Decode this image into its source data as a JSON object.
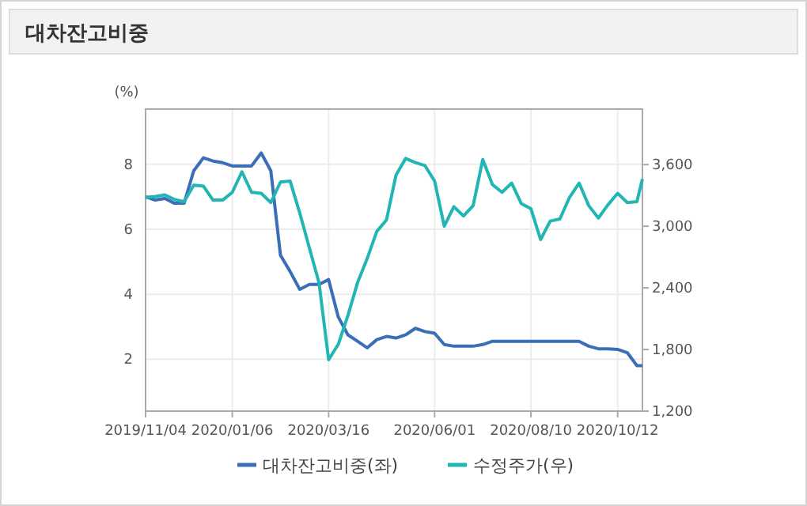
{
  "chart_data": {
    "type": "line",
    "title": "대차잔고비중",
    "ylabel": "(%)",
    "x": [
      "2019-11-04",
      "2019-11-11",
      "2019-11-18",
      "2019-11-25",
      "2019-12-02",
      "2019-12-09",
      "2019-12-16",
      "2019-12-23",
      "2019-12-30",
      "2020-01-06",
      "2020-01-13",
      "2020-01-20",
      "2020-01-27",
      "2020-02-03",
      "2020-02-10",
      "2020-02-17",
      "2020-02-24",
      "2020-03-02",
      "2020-03-09",
      "2020-03-16",
      "2020-03-23",
      "2020-03-30",
      "2020-04-06",
      "2020-04-13",
      "2020-04-20",
      "2020-04-27",
      "2020-05-04",
      "2020-05-11",
      "2020-05-18",
      "2020-05-25",
      "2020-06-01",
      "2020-06-08",
      "2020-06-15",
      "2020-06-22",
      "2020-06-29",
      "2020-07-06",
      "2020-07-13",
      "2020-07-20",
      "2020-07-27",
      "2020-08-03",
      "2020-08-10",
      "2020-08-17",
      "2020-08-24",
      "2020-08-31",
      "2020-09-07",
      "2020-09-14",
      "2020-09-21",
      "2020-09-28",
      "2020-10-05",
      "2020-10-12",
      "2020-10-19",
      "2020-10-26",
      "2020-10-30"
    ],
    "series": [
      {
        "name": "대차잔고비중(좌)",
        "color": "#3a6fb8",
        "values": [
          7.0,
          6.9,
          6.95,
          6.8,
          6.8,
          7.8,
          8.2,
          8.1,
          8.05,
          7.95,
          7.95,
          7.95,
          8.35,
          7.8,
          5.2,
          4.7,
          4.15,
          4.3,
          4.3,
          4.45,
          3.3,
          2.75,
          2.55,
          2.35,
          2.6,
          2.7,
          2.65,
          2.75,
          2.95,
          2.85,
          2.8,
          2.45,
          2.4,
          2.4,
          2.4,
          2.45,
          2.55,
          2.55,
          2.55,
          2.55,
          2.55,
          2.55,
          2.55,
          2.55,
          2.55,
          2.55,
          2.4,
          2.32,
          2.32,
          2.3,
          2.2,
          1.8,
          1.8
        ]
      },
      {
        "name": "수정주가(우)",
        "color": "#22b5b5",
        "axis": "y2",
        "values": [
          3280,
          3290,
          3305,
          3260,
          3240,
          3400,
          3390,
          3254,
          3254,
          3330,
          3530,
          3330,
          3320,
          3230,
          3430,
          3440,
          3130,
          2790,
          2450,
          1700,
          1850,
          2130,
          2450,
          2685,
          2950,
          3060,
          3500,
          3660,
          3620,
          3590,
          3440,
          3000,
          3190,
          3100,
          3200,
          3650,
          3405,
          3330,
          3420,
          3220,
          3170,
          2870,
          3050,
          3070,
          3280,
          3420,
          3200,
          3080,
          3210,
          3320,
          3230,
          3240,
          3460
        ]
      }
    ],
    "xlim": [
      "2019-11-04",
      "2020-10-30"
    ],
    "xticks": [
      {
        "value": "2019-11-04",
        "label": "2019/11/04"
      },
      {
        "value": "2020-01-06",
        "label": "2020/01/06"
      },
      {
        "value": "2020-03-16",
        "label": "2020/03/16"
      },
      {
        "value": "2020-06-01",
        "label": "2020/06/01"
      },
      {
        "value": "2020-08-10",
        "label": "2020/08/10"
      },
      {
        "value": "2020-10-12",
        "label": "2020/10/12"
      }
    ],
    "ylim": [
      0.4,
      9.7
    ],
    "yticks": [
      2,
      4,
      6,
      8
    ],
    "y2lim": [
      1200,
      4140
    ],
    "y2ticks": [
      {
        "value": 1200,
        "label": "1,200"
      },
      {
        "value": 1800,
        "label": "1,800"
      },
      {
        "value": 2400,
        "label": "2,400"
      },
      {
        "value": 3000,
        "label": "3,000"
      },
      {
        "value": 3600,
        "label": "3,600"
      }
    ],
    "grid": true,
    "legend": "bottom",
    "line_style": "solid",
    "marker": "none"
  }
}
